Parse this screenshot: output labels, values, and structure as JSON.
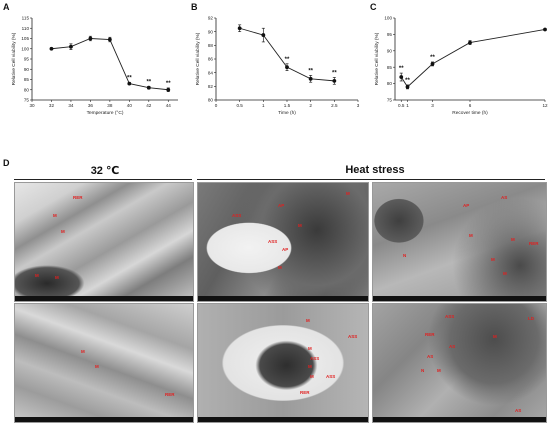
{
  "panels": {
    "a": "A",
    "b": "B",
    "c": "C",
    "d": "D"
  },
  "chart_data": [
    {
      "id": "A",
      "type": "line",
      "xlabel": "Temperature (°C)",
      "ylabel": "Relative Cell viability (%)",
      "xlim": [
        30,
        45
      ],
      "ylim": [
        75,
        115
      ],
      "xticks": [
        30,
        32,
        34,
        36,
        38,
        40,
        42,
        44
      ],
      "yticks": [
        75,
        80,
        85,
        90,
        95,
        100,
        105,
        110,
        115
      ],
      "x": [
        32,
        34,
        36,
        38,
        40,
        42,
        44
      ],
      "y": [
        100,
        101,
        105,
        104.5,
        83,
        81,
        80
      ],
      "err": [
        0.4,
        1.4,
        1.1,
        1.1,
        0.5,
        0.6,
        0.9
      ],
      "annotations": [
        {
          "x": 40,
          "text": "**"
        },
        {
          "x": 42,
          "text": "**"
        },
        {
          "x": 44,
          "text": "**"
        }
      ]
    },
    {
      "id": "B",
      "type": "line",
      "xlabel": "Time (h)",
      "ylabel": "Relative Cell viability (%)",
      "xlim": [
        0,
        3
      ],
      "ylim": [
        80,
        92
      ],
      "xticks": [
        0,
        0.5,
        1,
        1.5,
        2,
        2.5,
        3
      ],
      "yticks": [
        80,
        82,
        84,
        86,
        88,
        90,
        92
      ],
      "x": [
        0.5,
        1,
        1.5,
        2,
        2.5
      ],
      "y": [
        90.5,
        89.5,
        84.8,
        83.1,
        82.8
      ],
      "err": [
        0.5,
        1.0,
        0.5,
        0.5,
        0.5
      ],
      "annotations": [
        {
          "x": 1.5,
          "text": "**"
        },
        {
          "x": 2,
          "text": "**"
        },
        {
          "x": 2.5,
          "text": "**"
        }
      ]
    },
    {
      "id": "C",
      "type": "line",
      "xlabel": "Recover time (h)",
      "ylabel": "Relative Cell viability (%)",
      "xlim": [
        0,
        12
      ],
      "ylim": [
        75,
        100
      ],
      "xticks": [
        0.5,
        1,
        3,
        6,
        12
      ],
      "yticks": [
        75,
        80,
        85,
        90,
        95,
        100
      ],
      "x": [
        0.5,
        1,
        3,
        6,
        12
      ],
      "y": [
        82,
        79,
        86,
        92.5,
        96.5
      ],
      "err": [
        1.2,
        0.6,
        0.6,
        0.6,
        0.3
      ],
      "annotations": [
        {
          "x": 0.5,
          "text": "**"
        },
        {
          "x": 1,
          "text": "**"
        },
        {
          "x": 3,
          "text": "**"
        }
      ]
    }
  ],
  "micrographs": {
    "header_left": "32 ℃",
    "header_right": "Heat stress",
    "panels": [
      {
        "labels": [
          "RER",
          "M",
          "M",
          "M",
          "M"
        ]
      },
      {
        "labels": [
          "M",
          "AP",
          "ASS",
          "ASS",
          "AP",
          "M",
          "M"
        ]
      },
      {
        "labels": [
          "N",
          "AP",
          "AS",
          "M",
          "M",
          "RER",
          "M",
          "M"
        ]
      },
      {
        "labels": [
          "M",
          "M",
          "RER"
        ]
      },
      {
        "labels": [
          "M",
          "ASS",
          "M",
          "ASS",
          "M",
          "M",
          "ASS",
          "RER"
        ]
      },
      {
        "labels": [
          "ASS",
          "RER",
          "AS",
          "AS",
          "M",
          "LD",
          "M",
          "N",
          "AS"
        ]
      }
    ]
  }
}
